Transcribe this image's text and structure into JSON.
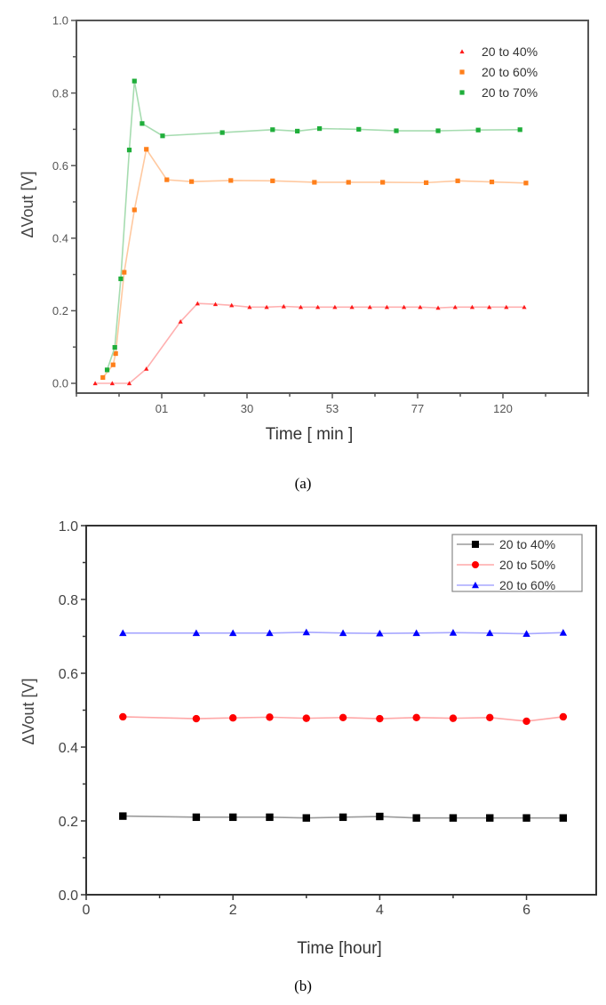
{
  "chart_data": [
    {
      "type": "line",
      "caption": "(a)",
      "title": "",
      "xlabel": "Time [ min ]",
      "ylabel": "ΔVout [V]",
      "xlim": [
        0,
        6
      ],
      "ylim": [
        -0.027,
        1.0
      ],
      "x_tick_labels": [
        {
          "at": 1,
          "label": "01"
        },
        {
          "at": 2,
          "label": "30"
        },
        {
          "at": 3,
          "label": "53"
        },
        {
          "at": 4,
          "label": "77"
        },
        {
          "at": 5,
          "label": "120"
        }
      ],
      "y_ticks": [
        "0.0",
        "0.2",
        "0.4",
        "0.6",
        "0.8",
        "1.0"
      ],
      "grid": false,
      "legend": {
        "placement": "top-right",
        "boxed": false
      },
      "series": [
        {
          "name": "20 to 40%",
          "color": "#ff1a1a",
          "line_color": "#ffb0b0",
          "marker": "triangle",
          "x": [
            0.22,
            0.42,
            0.62,
            0.82,
            1.22,
            1.42,
            1.63,
            1.82,
            2.03,
            2.23,
            2.43,
            2.63,
            2.83,
            3.03,
            3.23,
            3.44,
            3.64,
            3.84,
            4.03,
            4.24,
            4.44,
            4.64,
            4.84,
            5.04,
            5.25
          ],
          "y": [
            0,
            0,
            0,
            0.04,
            0.17,
            0.22,
            0.218,
            0.215,
            0.21,
            0.21,
            0.212,
            0.21,
            0.21,
            0.21,
            0.21,
            0.21,
            0.21,
            0.21,
            0.21,
            0.208,
            0.21,
            0.21,
            0.21,
            0.21,
            0.21
          ]
        },
        {
          "name": "20 to 60%",
          "color": "#ff7f1a",
          "line_color": "#ffc9a0",
          "marker": "square",
          "x": [
            0.31,
            0.43,
            0.46,
            0.56,
            0.68,
            0.82,
            1.06,
            1.35,
            1.81,
            2.3,
            2.79,
            3.19,
            3.59,
            4.1,
            4.47,
            4.87,
            5.27
          ],
          "y": [
            0.016,
            0.051,
            0.082,
            0.306,
            0.478,
            0.645,
            0.561,
            0.556,
            0.559,
            0.558,
            0.554,
            0.554,
            0.554,
            0.553,
            0.558,
            0.555,
            0.552
          ]
        },
        {
          "name": "20 to 70%",
          "color": "#1fae3a",
          "line_color": "#a6dcb0",
          "marker": "square",
          "x": [
            0.36,
            0.45,
            0.52,
            0.62,
            0.68,
            0.77,
            1.01,
            1.71,
            2.3,
            2.59,
            2.85,
            3.31,
            3.75,
            4.24,
            4.71,
            5.2
          ],
          "y": [
            0.037,
            0.099,
            0.288,
            0.643,
            0.833,
            0.716,
            0.682,
            0.691,
            0.699,
            0.695,
            0.702,
            0.7,
            0.696,
            0.696,
            0.698,
            0.699
          ]
        }
      ]
    },
    {
      "type": "line",
      "caption": "(b)",
      "title": "",
      "xlabel": "Time [hour]",
      "ylabel": "ΔVout [V]",
      "xlim": [
        0,
        6.95
      ],
      "ylim": [
        0,
        1.0
      ],
      "x_tick_labels": [
        {
          "at": 0,
          "label": "0"
        },
        {
          "at": 2,
          "label": "2"
        },
        {
          "at": 4,
          "label": "4"
        },
        {
          "at": 6,
          "label": "6"
        }
      ],
      "y_ticks": [
        "0.0",
        "0.2",
        "0.4",
        "0.6",
        "0.8",
        "1.0"
      ],
      "grid": false,
      "legend": {
        "placement": "top-right",
        "boxed": true
      },
      "series": [
        {
          "name": "20 to 40%",
          "color": "#000000",
          "line_color": "#9a9a9a",
          "marker": "square",
          "x": [
            0.5,
            1.5,
            2,
            2.5,
            3,
            3.5,
            4,
            4.5,
            5,
            5.5,
            6,
            6.5
          ],
          "y": [
            0.213,
            0.21,
            0.21,
            0.21,
            0.208,
            0.21,
            0.212,
            0.208,
            0.208,
            0.208,
            0.208,
            0.208
          ]
        },
        {
          "name": "20 to 50%",
          "color": "#ff0000",
          "line_color": "#ffa8a8",
          "marker": "circle",
          "x": [
            0.5,
            1.5,
            2,
            2.5,
            3,
            3.5,
            4,
            4.5,
            5,
            5.5,
            6,
            6.5
          ],
          "y": [
            0.482,
            0.477,
            0.479,
            0.481,
            0.478,
            0.48,
            0.477,
            0.48,
            0.478,
            0.48,
            0.47,
            0.482
          ]
        },
        {
          "name": "20 to 60%",
          "color": "#0000ff",
          "line_color": "#a8a8ff",
          "marker": "triangle",
          "x": [
            0.5,
            1.5,
            2,
            2.5,
            3,
            3.5,
            4,
            4.5,
            5,
            5.5,
            6,
            6.5
          ],
          "y": [
            0.709,
            0.709,
            0.709,
            0.709,
            0.711,
            0.709,
            0.708,
            0.709,
            0.71,
            0.709,
            0.707,
            0.71
          ]
        }
      ]
    }
  ]
}
